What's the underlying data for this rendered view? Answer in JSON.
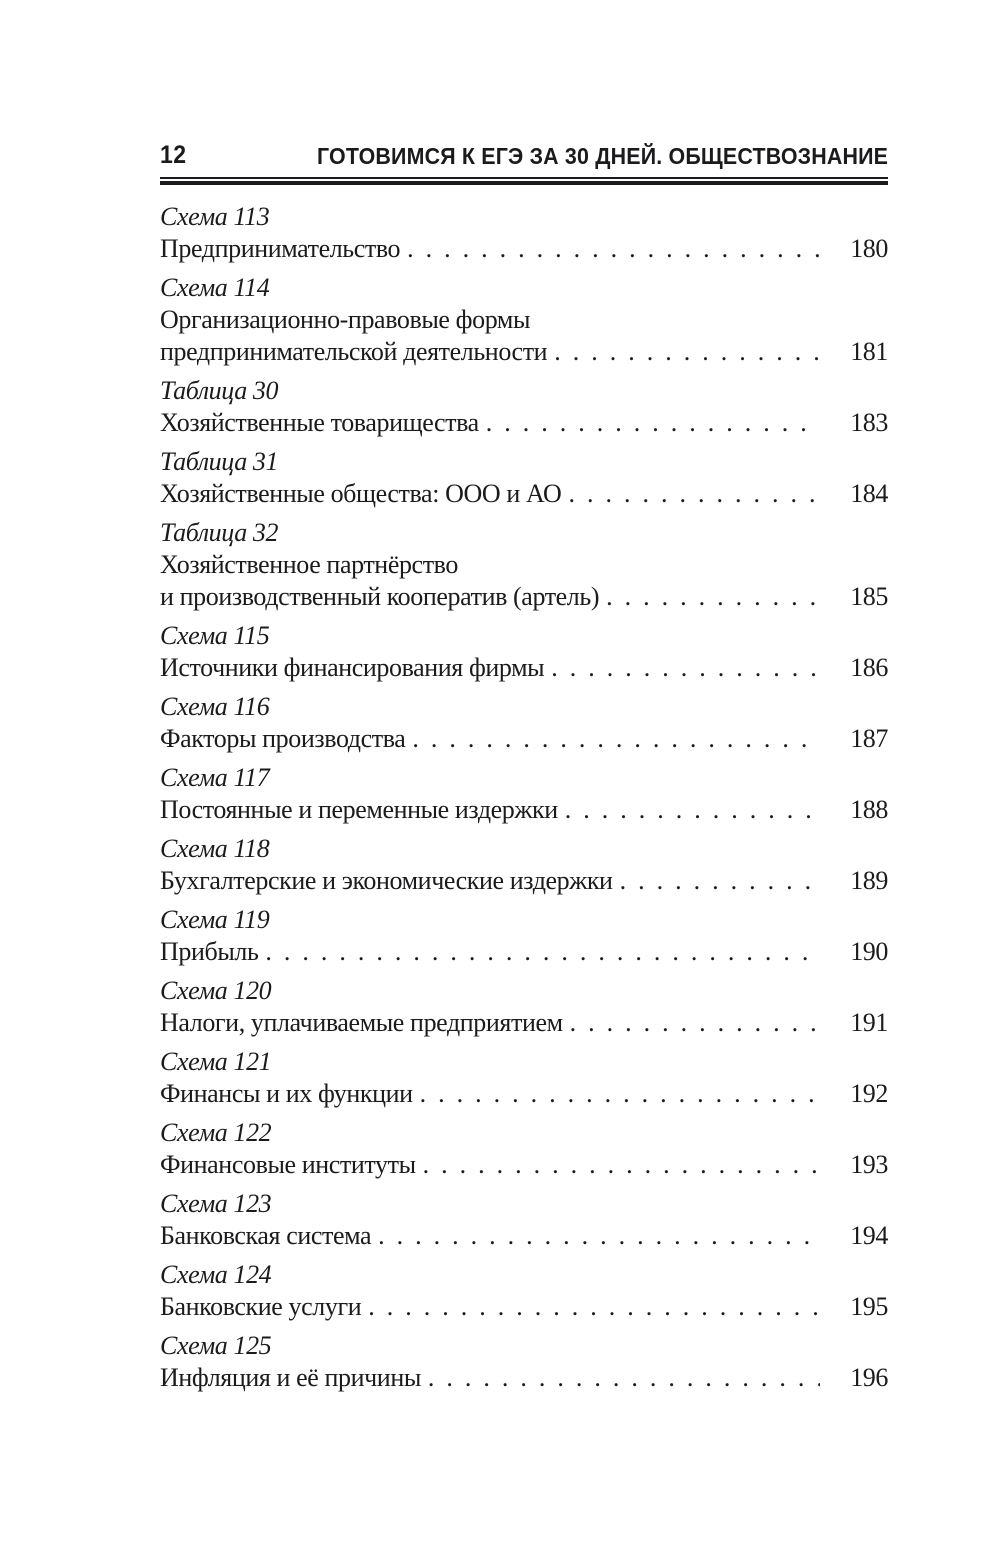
{
  "page": {
    "number": "12",
    "running_title": "ГОТОВИМСЯ К ЕГЭ ЗА 30 ДНЕЙ. ОБЩЕСТВОЗНАНИЕ"
  },
  "colors": {
    "ink": "#1b1b1d",
    "background": "#ffffff"
  },
  "toc": {
    "entries": [
      {
        "label": "Схема 113",
        "title_lines": [
          "Предпринимательство"
        ],
        "page": "180"
      },
      {
        "label": "Схема 114",
        "title_lines": [
          "Организационно-правовые формы",
          "предпринимательской деятельности"
        ],
        "page": "181"
      },
      {
        "label": "Таблица 30",
        "title_lines": [
          "Хозяйственные товарищества"
        ],
        "page": "183"
      },
      {
        "label": "Таблица 31",
        "title_lines": [
          "Хозяйственные общества: ООО и АО"
        ],
        "page": "184"
      },
      {
        "label": "Таблица 32",
        "title_lines": [
          "Хозяйственное партнёрство",
          "и производственный кооператив (артель)"
        ],
        "page": "185"
      },
      {
        "label": "Схема 115",
        "title_lines": [
          "Источники финансирования фирмы"
        ],
        "page": "186"
      },
      {
        "label": "Схема 116",
        "title_lines": [
          "Факторы производства"
        ],
        "page": "187"
      },
      {
        "label": "Схема 117",
        "title_lines": [
          "Постоянные и переменные издержки"
        ],
        "page": "188"
      },
      {
        "label": "Схема 118",
        "title_lines": [
          "Бухгалтерские и экономические издержки"
        ],
        "page": "189"
      },
      {
        "label": "Схема 119",
        "title_lines": [
          "Прибыль"
        ],
        "page": "190"
      },
      {
        "label": "Схема 120",
        "title_lines": [
          "Налоги, уплачиваемые предприятием"
        ],
        "page": "191"
      },
      {
        "label": "Схема 121",
        "title_lines": [
          "Финансы и их функции"
        ],
        "page": "192"
      },
      {
        "label": "Схема 122",
        "title_lines": [
          "Финансовые институты"
        ],
        "page": "193"
      },
      {
        "label": "Схема 123",
        "title_lines": [
          "Банковская система"
        ],
        "page": "194"
      },
      {
        "label": "Схема 124",
        "title_lines": [
          "Банковские услуги"
        ],
        "page": "195"
      },
      {
        "label": "Схема 125",
        "title_lines": [
          "Инфляция и её причины"
        ],
        "page": "196"
      }
    ]
  }
}
